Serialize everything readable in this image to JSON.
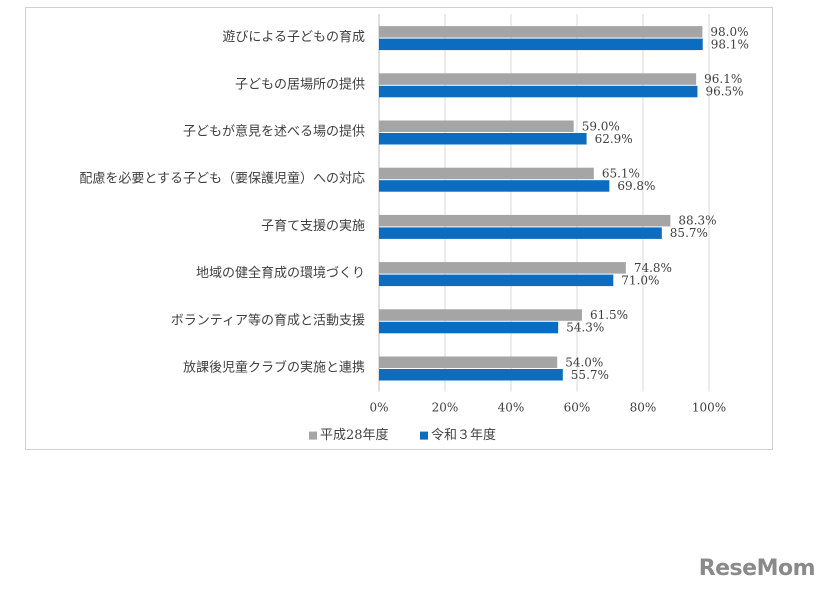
{
  "logo": {
    "text": "ReseMom"
  },
  "colors": {
    "series1": "#a5a5a5",
    "series2": "#0b6cc0",
    "grid": "#d9d9d9",
    "axis": "#bfbfbf"
  },
  "chart_data": {
    "type": "bar",
    "orientation": "horizontal",
    "categories": [
      "遊びによる子どもの育成",
      "子どもの居場所の提供",
      "子どもが意見を述べる場の提供",
      "配慮を必要とする子ども（要保護児童）への対応",
      "子育て支援の実施",
      "地域の健全育成の環境づくり",
      "ボランティア等の育成と活動支援",
      "放課後児童クラブの実施と連携"
    ],
    "series": [
      {
        "name": "平成28年度",
        "values": [
          98.0,
          96.1,
          59.0,
          65.1,
          88.3,
          74.8,
          61.5,
          54.0
        ],
        "labels": [
          "98.0%",
          "96.1%",
          "59.0%",
          "65.1%",
          "88.3%",
          "74.8%",
          "61.5%",
          "54.0%"
        ]
      },
      {
        "name": "令和３年度",
        "values": [
          98.1,
          96.5,
          62.9,
          69.8,
          85.7,
          71.0,
          54.3,
          55.7
        ],
        "labels": [
          "98.1%",
          "96.5%",
          "62.9%",
          "69.8%",
          "85.7%",
          "71.0%",
          "54.3%",
          "55.7%"
        ]
      }
    ],
    "xlim": [
      0,
      100
    ],
    "ticks": [
      0,
      20,
      40,
      60,
      80,
      100
    ],
    "tick_labels": [
      "0%",
      "20%",
      "40%",
      "60%",
      "80%",
      "100%"
    ],
    "grid": true,
    "legend": "bottom"
  }
}
